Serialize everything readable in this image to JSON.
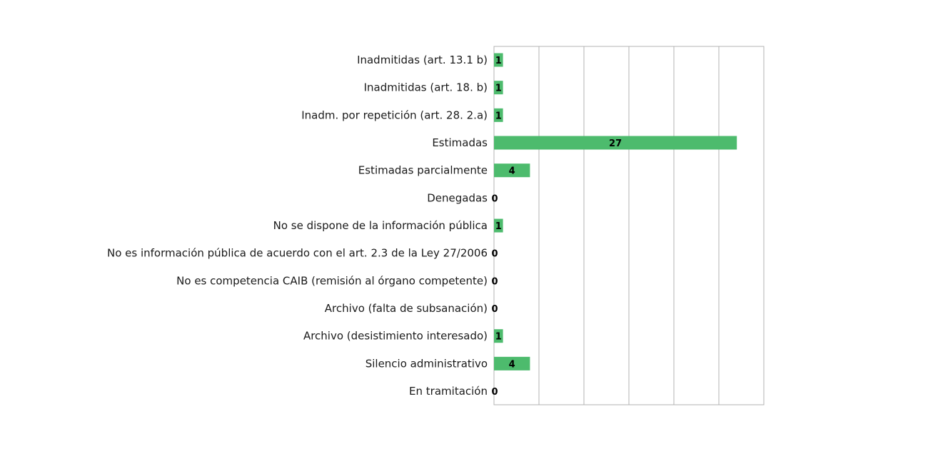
{
  "chart_data": {
    "type": "bar",
    "orientation": "horizontal",
    "categories": [
      "Inadmitidas (art. 13.1 b)",
      "Inadmitidas (art. 18. b)",
      "Inadm. por repetición (art. 28. 2.a)",
      "Estimadas",
      "Estimadas parcialmente",
      "Denegadas",
      "No se dispone de la información pública",
      "No es información pública de acuerdo con el art. 2.3 de la Ley 27/2006",
      "No es competencia CAIB (remisión al órgano competente)",
      "Archivo (falta de subsanación)",
      "Archivo (desistimiento interesado)",
      "Silencio administrativo",
      "En tramitación"
    ],
    "values": [
      1,
      1,
      1,
      27,
      4,
      0,
      1,
      0,
      0,
      0,
      1,
      4,
      0
    ],
    "xlim": [
      0,
      30
    ],
    "grid_interval": 5,
    "grid": true,
    "legend": "none",
    "bar_color": "#4dbb6d",
    "gridline_color": "#b3b3b3",
    "title": "",
    "xlabel": "",
    "ylabel": ""
  }
}
